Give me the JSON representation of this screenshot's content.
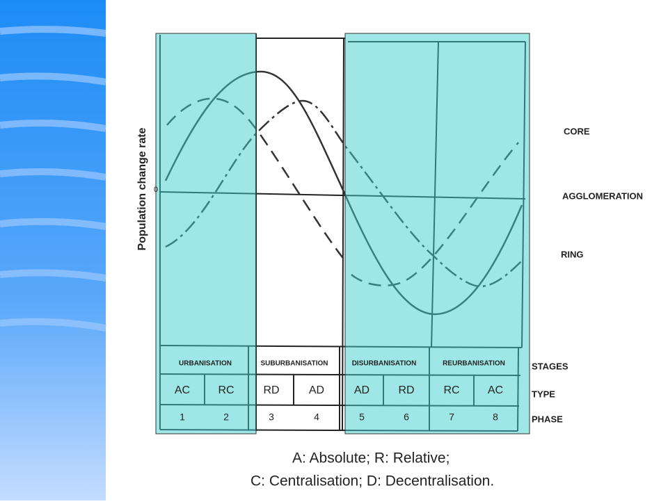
{
  "axis_label": "Population change rate",
  "zero_label": "0",
  "curve_labels": [
    "CORE",
    "AGGLOMERATION",
    "RING"
  ],
  "row_labels": [
    "STAGES",
    "TYPE",
    "PHASE"
  ],
  "stages": [
    "URBANISATION",
    "SUBURBANISATION",
    "DISURBANISATION",
    "REURBANISATION"
  ],
  "types": [
    "AC",
    "RC",
    "RD",
    "AD",
    "AD",
    "RD",
    "RC",
    "AC"
  ],
  "phases": [
    "1",
    "2",
    "3",
    "4",
    "5",
    "6",
    "7",
    "8"
  ],
  "legend": [
    "A: Absolute; R: Relative;",
    "C: Centralisation; D: Decentralisation."
  ]
}
